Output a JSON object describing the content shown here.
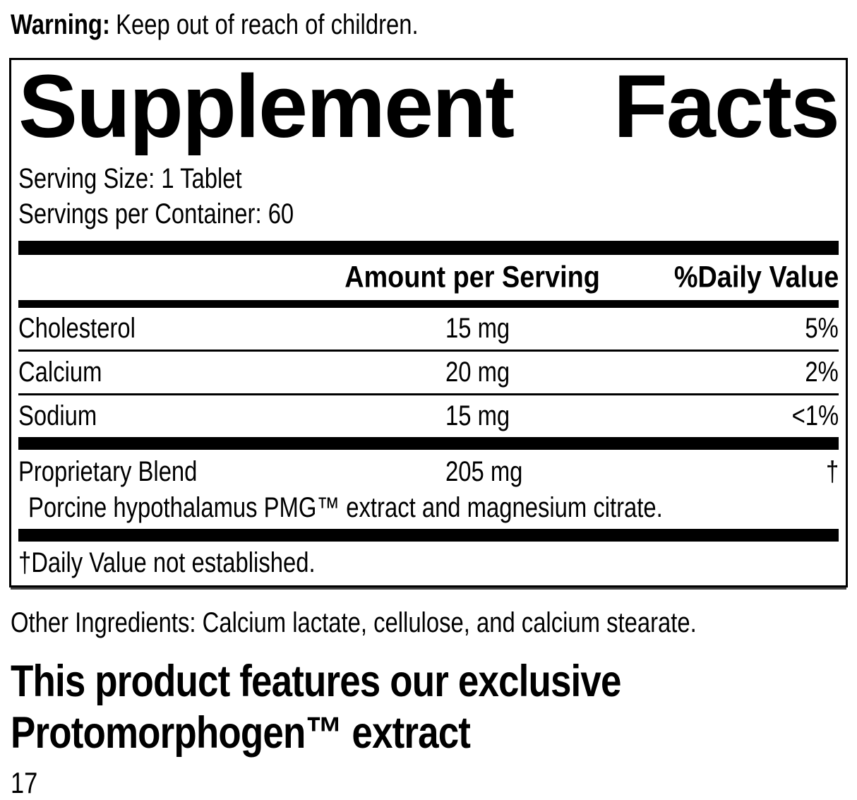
{
  "warning": {
    "label": "Warning:",
    "text": "Keep out of reach of children."
  },
  "panel": {
    "title_left": "Supplement",
    "title_right": "Facts",
    "serving_size": "Serving Size: 1 Tablet",
    "servings_per_container": "Servings per Container: 60",
    "columns": {
      "amount": "Amount per Serving",
      "dv": "%Daily Value"
    },
    "rows": [
      {
        "name": "Cholesterol",
        "amount": "15 mg",
        "dv": "5%"
      },
      {
        "name": "Calcium",
        "amount": "20 mg",
        "dv": "2%"
      },
      {
        "name": "Sodium",
        "amount": "15 mg",
        "dv": "<1%"
      }
    ],
    "blend": {
      "name": "Proprietary Blend",
      "amount": "205 mg",
      "dv": "†",
      "description": "Porcine hypothalamus PMG™ extract and magnesium citrate."
    },
    "footnote": "†Daily Value not established."
  },
  "other_ingredients": "Other Ingredients: Calcium lactate, cellulose, and calcium stearate.",
  "feature": {
    "line1": "This product features our exclusive",
    "line2": "Protomorphogen™ extract"
  },
  "page_number": "17",
  "colors": {
    "ink": "#000000",
    "background": "#ffffff"
  }
}
